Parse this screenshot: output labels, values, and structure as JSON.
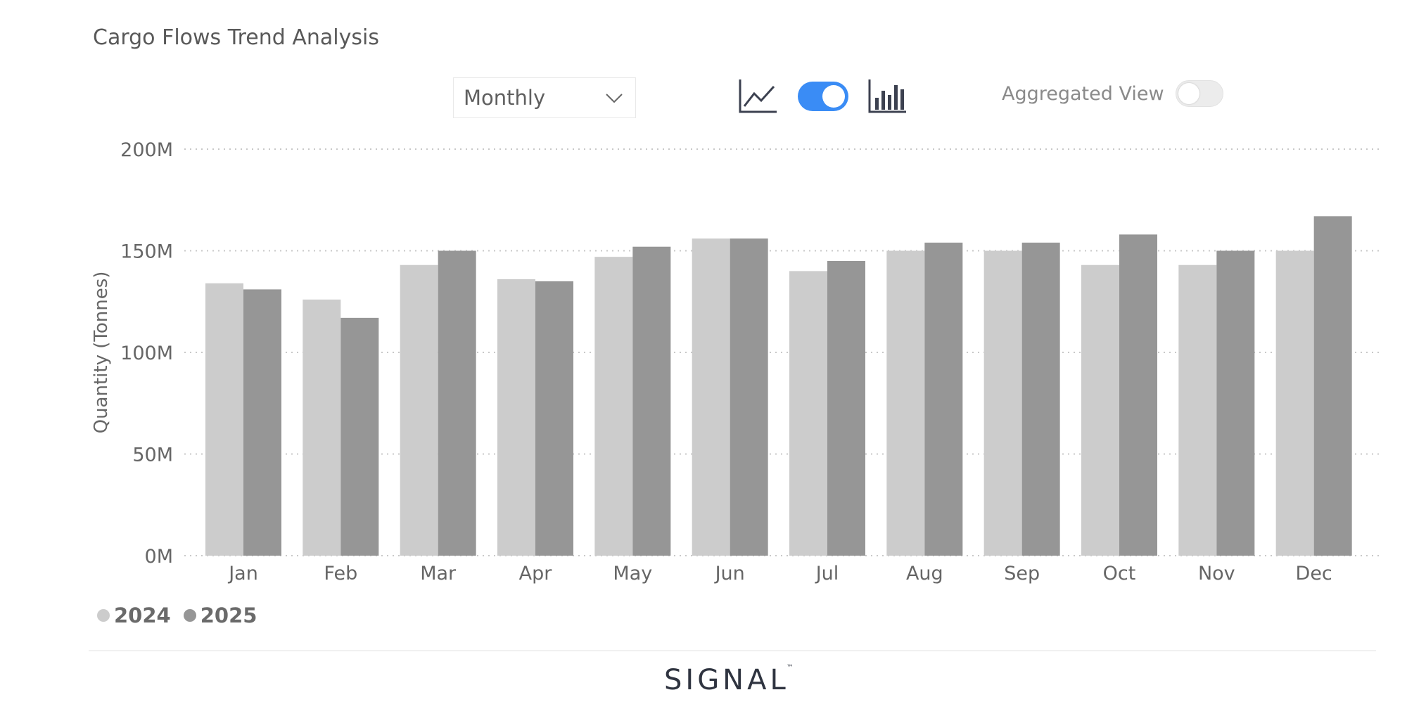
{
  "header": {
    "title": "Cargo Flows Trend Analysis"
  },
  "controls": {
    "period_select": {
      "value": "Monthly",
      "icon": "chevron-down-icon"
    },
    "chart_type_toggle": {
      "left_icon": "line-chart-icon",
      "right_icon": "bar-chart-icon",
      "state": "bar",
      "color": "#3a8cf5"
    },
    "aggregated_view": {
      "label": "Aggregated View",
      "on": false
    }
  },
  "chart_data": {
    "type": "bar",
    "title": "",
    "xlabel": "",
    "ylabel": "Quantity (Tonnes)",
    "ylim": [
      0,
      200
    ],
    "yticks": [
      "0M",
      "50M",
      "100M",
      "150M",
      "200M"
    ],
    "ytick_values": [
      0,
      50,
      100,
      150,
      200
    ],
    "unit": "M",
    "grid": true,
    "legend_position": "bottom-left",
    "categories": [
      "Jan",
      "Feb",
      "Mar",
      "Apr",
      "May",
      "Jun",
      "Jul",
      "Aug",
      "Sep",
      "Oct",
      "Nov",
      "Dec"
    ],
    "series": [
      {
        "name": "2024",
        "color": "#cccccc",
        "values": [
          134,
          126,
          143,
          136,
          147,
          156,
          140,
          150,
          150,
          143,
          143,
          150
        ]
      },
      {
        "name": "2025",
        "color": "#969696",
        "values": [
          131,
          117,
          150,
          135,
          152,
          156,
          145,
          154,
          154,
          158,
          150,
          167
        ]
      }
    ]
  },
  "footer": {
    "logo": "SIGNAL",
    "logo_mark": "™"
  }
}
